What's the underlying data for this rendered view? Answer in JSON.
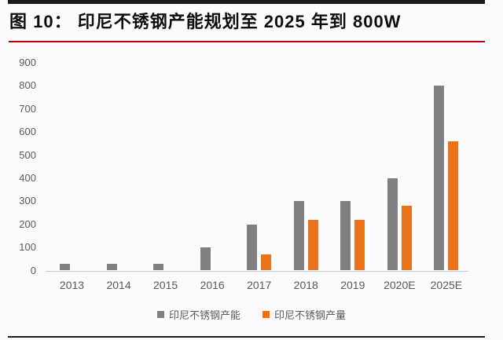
{
  "figure": {
    "title": "图 10：  印尼不锈钢产能规划至 2025 年到 800W"
  },
  "colors": {
    "capacity_series": "#808080",
    "production_series": "#E8731A",
    "title_rule": "#C00000",
    "top_bar": "#1A1A1A",
    "bottom_rule": "#1A1A1A",
    "axis_line": "#C9C9C9",
    "tick_text": "#595959",
    "background": "#FBFAFD"
  },
  "chart_data": {
    "type": "bar",
    "title": "印尼不锈钢产能规划至 2025 年到 800W",
    "categories": [
      "2013",
      "2014",
      "2015",
      "2016",
      "2017",
      "2018",
      "2019",
      "2020E",
      "2025E"
    ],
    "series": [
      {
        "name": "印尼不锈钢产能",
        "color": "#808080",
        "values": [
          30,
          30,
          30,
          100,
          200,
          300,
          300,
          400,
          800
        ]
      },
      {
        "name": "印尼不锈钢产量",
        "color": "#E8731A",
        "values": [
          null,
          null,
          null,
          null,
          70,
          220,
          220,
          280,
          560
        ]
      }
    ],
    "xlabel": "",
    "ylabel": "",
    "ylim": [
      0,
      900
    ],
    "ytick_step": 100,
    "grid": false,
    "legend_position": "bottom"
  },
  "legend": {
    "items": [
      {
        "label": "印尼不锈钢产能",
        "color": "#808080"
      },
      {
        "label": "印尼不锈钢产量",
        "color": "#E8731A"
      }
    ]
  }
}
